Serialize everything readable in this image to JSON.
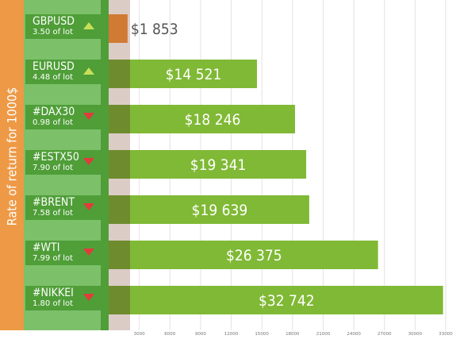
{
  "chart_data": {
    "type": "bar",
    "orientation": "horizontal",
    "ylabel": "Rate of return for 1000$",
    "categories": [
      "GBPUSD",
      "EURUSD",
      "#DAX30",
      "#ESTX50",
      "#BRENT",
      "#WTI",
      "#NIKKEI"
    ],
    "lot_labels": [
      "3.50 of lot",
      "4.48 of lot",
      "0.98 of lot",
      "7.90 of lot",
      "7.58 of lot",
      "7.99 of lot",
      "1.80 of lot"
    ],
    "trend": [
      "up",
      "up",
      "down",
      "down",
      "down",
      "down",
      "down"
    ],
    "values": [
      1853,
      14521,
      18246,
      19341,
      19639,
      26375,
      32742
    ],
    "value_labels": [
      "$1 853",
      "$14 521",
      "$18 246",
      "$19 341",
      "$19 639",
      "$26 375",
      "$32 742"
    ],
    "xticks": [
      "3000",
      "6000",
      "9000",
      "12000",
      "15000",
      "18000",
      "21000",
      "24000",
      "27000",
      "30000",
      "33000"
    ],
    "xlim": [
      0,
      33000
    ],
    "grid": true,
    "colors": {
      "bar": "#80b935",
      "bar_dark": "#6e8c2e",
      "first_bar": "#d07a34",
      "left_panel": "#7dc06a",
      "label_box": "#4f9e38",
      "side_bar": "#ee9945",
      "up": "#c7df58",
      "down": "#e23b3b",
      "value_text_on_bar": "#ffffff",
      "value_text_outside": "#555555"
    }
  }
}
